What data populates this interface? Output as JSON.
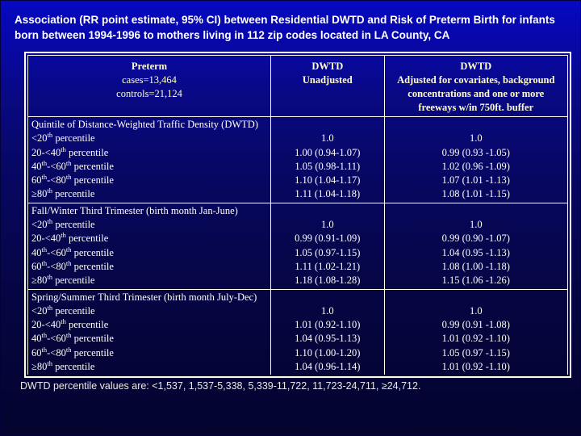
{
  "slide": {
    "title": "Association (RR point estimate, 95% CI) between Residential DWTD and Risk of Preterm Birth for infants born between 1994-1996 to mothers living in 112 zip codes located in LA County, CA",
    "footnote": "DWTD percentile values are: <1,537, 1,537-5,338, 5,339-11,722, 11,723-24,711, ≥24,712.",
    "colors": {
      "background_top": "#0609c2",
      "background_bottom": "#04042e",
      "table_border": "#fffcea",
      "header_text": "#ffffcc",
      "body_text": "#ffffff"
    }
  },
  "table": {
    "header": {
      "preterm": {
        "line1": "Preterm",
        "line2": "cases=13,464",
        "line3": "controls=21,124"
      },
      "unadjusted": {
        "line1": "DWTD",
        "line2": "Unadjusted"
      },
      "adjusted": {
        "line1": "DWTD",
        "line2": "Adjusted for covariates, background concentrations and one or more freeways w/in 750ft. buffer"
      }
    },
    "sections": [
      {
        "title": "Quintile of Distance-Weighted Traffic Density (DWTD)",
        "rows": [
          {
            "label": "<20th percentile",
            "unadjusted": "1.0",
            "adjusted": "1.0"
          },
          {
            "label": "20-<40th percentile",
            "unadjusted": "1.00 (0.94-1.07)",
            "adjusted": "0.99 (0.93 -1.05)"
          },
          {
            "label": "40th-<60th percentile",
            "unadjusted": "1.05 (0.98-1.11)",
            "adjusted": "1.02 (0.96 -1.09)"
          },
          {
            "label": "60th-<80th percentile",
            "unadjusted": "1.10 (1.04-1.17)",
            "adjusted": "1.07 (1.01 -1.13)"
          },
          {
            "label": "≥80th percentile",
            "unadjusted": "1.11 (1.04-1.18)",
            "adjusted": "1.08 (1.01 -1.15)"
          }
        ]
      },
      {
        "title": "Fall/Winter Third Trimester (birth month Jan-June)",
        "rows": [
          {
            "label": "<20th percentile",
            "unadjusted": "1.0",
            "adjusted": "1.0"
          },
          {
            "label": "20-<40th percentile",
            "unadjusted": "0.99 (0.91-1.09)",
            "adjusted": "0.99 (0.90 -1.07)"
          },
          {
            "label": "40th-<60th percentile",
            "unadjusted": "1.05 (0.97-1.15)",
            "adjusted": "1.04 (0.95 -1.13)"
          },
          {
            "label": "60th-<80th percentile",
            "unadjusted": "1.11 (1.02-1.21)",
            "adjusted": "1.08 (1.00 -1.18)"
          },
          {
            "label": "≥80th percentile",
            "unadjusted": "1.18 (1.08-1.28)",
            "adjusted": "1.15 (1.06 -1.26)"
          }
        ]
      },
      {
        "title": "Spring/Summer Third Trimester (birth month July-Dec)",
        "rows": [
          {
            "label": "<20th percentile",
            "unadjusted": "1.0",
            "adjusted": "1.0"
          },
          {
            "label": "20-<40th percentile",
            "unadjusted": "1.01 (0.92-1.10)",
            "adjusted": "0.99 (0.91 -1.08)"
          },
          {
            "label": "40th-<60th percentile",
            "unadjusted": "1.04 (0.95-1.13)",
            "adjusted": "1.01 (0.92 -1.10)"
          },
          {
            "label": "60th-<80th percentile",
            "unadjusted": "1.10 (1.00-1.20)",
            "adjusted": "1.05 (0.97 -1.15)"
          },
          {
            "label": "≥80th percentile",
            "unadjusted": "1.04 (0.96-1.14)",
            "adjusted": "1.01 (0.92 -1.10)"
          }
        ]
      }
    ]
  }
}
